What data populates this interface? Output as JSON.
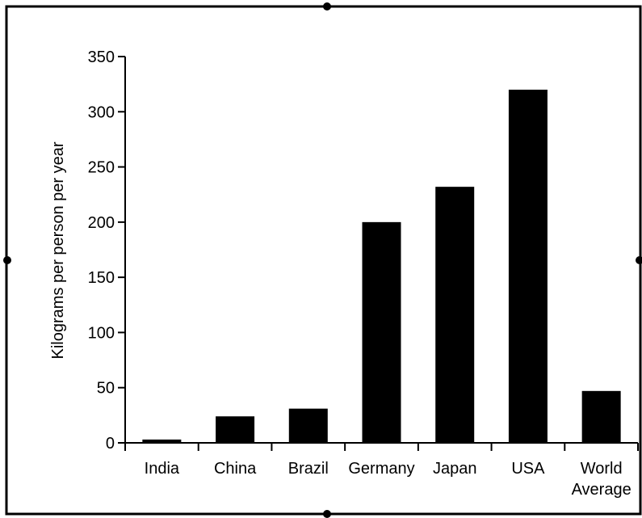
{
  "chart_data": {
    "type": "bar",
    "categories": [
      "India",
      "China",
      "Brazil",
      "Germany",
      "Japan",
      "USA",
      "World|Average"
    ],
    "values": [
      3,
      24,
      31,
      200,
      232,
      320,
      47
    ],
    "ylabel": "Kilograms per person per year",
    "xlabel": "",
    "ylim": [
      0,
      350
    ],
    "yticks": [
      0,
      50,
      100,
      150,
      200,
      250,
      300,
      350
    ],
    "bar_color": "#000000",
    "grid": false,
    "legend": "none"
  }
}
